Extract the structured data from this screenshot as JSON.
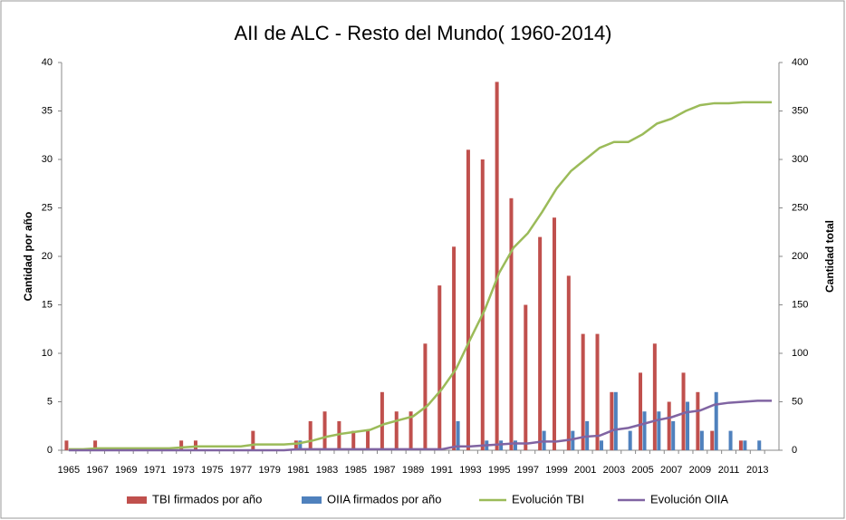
{
  "chart_data": {
    "type": "bar",
    "title": "AII de ALC - Resto del Mundo( 1960-2014)",
    "y_label": "Cantidad por año",
    "y2_label": "Cantidad total",
    "categories": [
      "1965",
      null,
      "1967",
      null,
      "1969",
      null,
      "1971",
      null,
      "1973",
      null,
      "1975",
      null,
      "1977",
      null,
      "1979",
      null,
      "1981",
      null,
      "1983",
      null,
      "1985",
      null,
      "1987",
      null,
      "1989",
      null,
      "1991",
      null,
      "1993",
      null,
      "1995",
      null,
      "1997",
      null,
      "1999",
      null,
      "2001",
      null,
      "2003",
      null,
      "2005",
      null,
      "2007",
      null,
      "2009",
      null,
      "2011",
      null,
      "2013",
      null
    ],
    "series": [
      {
        "name": "TBI firmados por año",
        "kind": "bar",
        "color": "#c0504d",
        "axis": "y",
        "values": [
          1,
          0,
          1,
          0,
          0,
          0,
          0,
          0,
          1,
          1,
          0,
          0,
          0,
          2,
          0,
          0,
          1,
          3,
          4,
          3,
          2,
          2,
          6,
          4,
          4,
          11,
          17,
          21,
          31,
          30,
          38,
          26,
          15,
          22,
          24,
          18,
          12,
          12,
          6,
          0,
          8,
          11,
          5,
          8,
          6,
          2,
          0,
          1,
          0,
          0
        ]
      },
      {
        "name": "OIIA firmados por año",
        "kind": "bar",
        "color": "#4f81bd",
        "axis": "y",
        "values": [
          0,
          0,
          0,
          0,
          0,
          0,
          0,
          0,
          0,
          0,
          0,
          0,
          0,
          0,
          0,
          0,
          1,
          0,
          0,
          0,
          0,
          0,
          0,
          0,
          0,
          0,
          0,
          3,
          0,
          1,
          1,
          1,
          0,
          2,
          0,
          2,
          3,
          1,
          6,
          2,
          4,
          4,
          3,
          5,
          2,
          6,
          2,
          1,
          1,
          0
        ]
      },
      {
        "name": "Evolución TBI",
        "kind": "line",
        "color": "#9bbb59",
        "axis": "y2",
        "values": [
          1,
          1,
          2,
          2,
          2,
          2,
          2,
          2,
          3,
          4,
          4,
          4,
          4,
          6,
          6,
          6,
          7,
          10,
          14,
          17,
          19,
          21,
          27,
          31,
          35,
          46,
          63,
          84,
          115,
          145,
          183,
          209,
          224,
          246,
          270,
          288,
          300,
          312,
          318,
          318,
          326,
          337,
          342,
          350,
          356,
          358,
          358,
          359,
          359,
          359
        ]
      },
      {
        "name": "Evolución OIIA",
        "kind": "line",
        "color": "#8064a2",
        "axis": "y2",
        "values": [
          0,
          0,
          0,
          0,
          0,
          0,
          0,
          0,
          0,
          0,
          0,
          0,
          0,
          0,
          0,
          0,
          1,
          1,
          1,
          1,
          1,
          1,
          1,
          1,
          1,
          1,
          1,
          4,
          4,
          5,
          6,
          7,
          7,
          9,
          9,
          11,
          14,
          15,
          21,
          23,
          27,
          31,
          34,
          39,
          41,
          47,
          49,
          50,
          51,
          51
        ]
      }
    ],
    "ylim": [
      0,
      40
    ],
    "yticks": [
      0,
      5,
      10,
      15,
      20,
      25,
      30,
      35,
      40
    ],
    "y2lim": [
      0,
      400
    ],
    "y2ticks": [
      0,
      50,
      100,
      150,
      200,
      250,
      300,
      350,
      400
    ],
    "grid": false
  }
}
